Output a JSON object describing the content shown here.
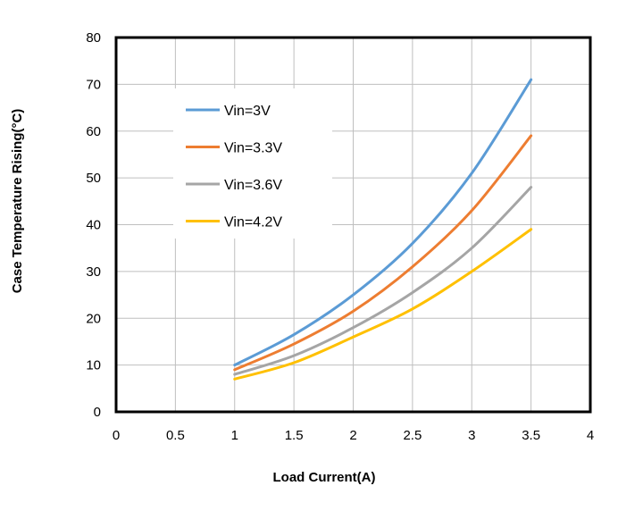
{
  "chart_data": {
    "type": "line",
    "title": "",
    "xlabel": "Load Current(A)",
    "ylabel": "Case Temperature Rising(°C)",
    "xlim": [
      0,
      4
    ],
    "ylim": [
      0,
      80
    ],
    "xticks": [
      "0",
      "0.5",
      "1",
      "1.5",
      "2",
      "2.5",
      "3",
      "3.5",
      "4"
    ],
    "yticks": [
      "0",
      "10",
      "20",
      "30",
      "40",
      "50",
      "60",
      "70",
      "80"
    ],
    "grid": true,
    "legend_position": "top-left",
    "x": [
      1,
      1.5,
      2,
      2.5,
      3,
      3.5
    ],
    "series": [
      {
        "name": "Vin=3V",
        "color": "#5B9BD5",
        "values": [
          10,
          16.5,
          25,
          36,
          51,
          71
        ]
      },
      {
        "name": "Vin=3.3V",
        "color": "#ED7D31",
        "values": [
          9,
          14.5,
          21.5,
          31,
          43,
          59
        ]
      },
      {
        "name": "Vin=3.6V",
        "color": "#A5A5A5",
        "values": [
          8,
          12,
          18,
          25.5,
          35,
          48
        ]
      },
      {
        "name": "Vin=4.2V",
        "color": "#FFC000",
        "values": [
          7,
          10.5,
          16,
          22,
          30,
          39
        ]
      }
    ]
  }
}
